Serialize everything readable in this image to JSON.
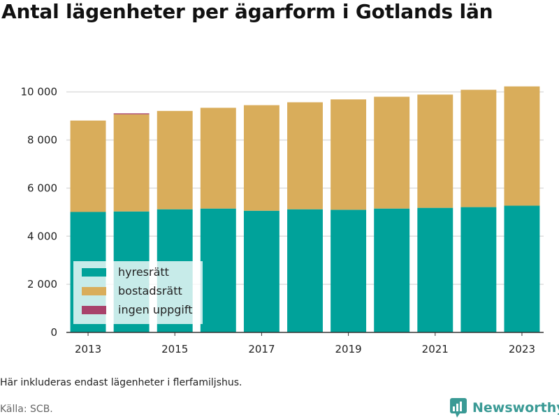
{
  "title": "Antal lägenheter per ägarform i Gotlands län",
  "note": "Här inkluderas endast lägenheter i flerfamiljshus.",
  "source": "Källa: SCB.",
  "brand": "Newsworthy",
  "colors": {
    "hyresratt": "#00a29a",
    "bostadsratt": "#d9ad5b",
    "ingen_uppgift": "#a8426b",
    "grid": "#dddddd",
    "axis": "#333333",
    "brand": "#3a9a95"
  },
  "chart_data": {
    "type": "bar",
    "stacked": true,
    "categories": [
      2013,
      2014,
      2015,
      2016,
      2017,
      2018,
      2019,
      2020,
      2021,
      2022,
      2023
    ],
    "x_tick_labels": [
      "2013",
      "2015",
      "2017",
      "2019",
      "2021",
      "2023"
    ],
    "y_tick_labels": [
      "0",
      "2 000",
      "4 000",
      "6 000",
      "8 000",
      "10 000"
    ],
    "y_ticks": [
      0,
      2000,
      4000,
      6000,
      8000,
      10000
    ],
    "ylim": [
      0,
      11500
    ],
    "grid": true,
    "legend": "bottom-left",
    "series": [
      {
        "name": "hyresrätt",
        "values": [
          5010,
          5030,
          5120,
          5150,
          5060,
          5120,
          5100,
          5150,
          5180,
          5210,
          5270
        ]
      },
      {
        "name": "bostadsrätt",
        "values": [
          3800,
          4040,
          4090,
          4190,
          4390,
          4450,
          4590,
          4650,
          4710,
          4880,
          4960
        ]
      },
      {
        "name": "ingen uppgift",
        "values": [
          0,
          40,
          0,
          0,
          0,
          0,
          0,
          0,
          0,
          0,
          0
        ]
      }
    ]
  }
}
